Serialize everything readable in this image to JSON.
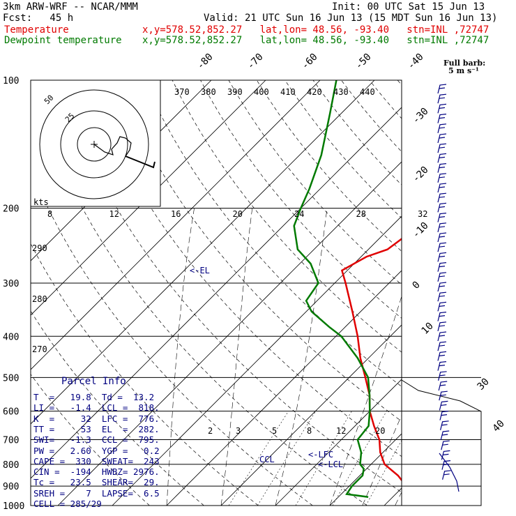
{
  "header": {
    "model": "3km ARW-WRF -- NCAR/MMM",
    "init": "Init: 00 UTC Sat 15 Jun 13",
    "fcst": "Fcst:   45 h",
    "valid": "Valid: 21 UTC Sun 16 Jun 13 (15 MDT Sun 16 Jun 13)",
    "temp_label": "Temperature",
    "dew_label": "Dewpoint temperature",
    "loc_text": "x,y=578.52,852.27   lat,lon= 48.56, -93.40   stn=INL ,72747"
  },
  "barb_legend": {
    "line1": "Full barb:",
    "line2": "5 m s⁻¹"
  },
  "colors": {
    "temperature": "#e00000",
    "dewpoint": "#007a00",
    "labels": "#000080"
  },
  "chart_data": {
    "type": "line",
    "skewt": true,
    "pressure_levels": [
      "100",
      "200",
      "300",
      "400",
      "500",
      "600",
      "700",
      "800",
      "900",
      "1000"
    ],
    "temp_ticks": [
      "-80",
      "-70",
      "-60",
      "-50",
      "-40",
      "-30",
      "-20",
      "-10",
      "0",
      "10",
      "30",
      "40"
    ],
    "theta_labels": [
      "370",
      "380",
      "390",
      "400",
      "410",
      "420",
      "430",
      "440"
    ],
    "mixing_ratio_labels": [
      "2",
      "3",
      "5",
      "8",
      "12",
      "20"
    ],
    "theta_e_labels": [
      "290",
      "280",
      "270"
    ],
    "hodo_speed_labels": [
      "8",
      "12",
      "16",
      "20",
      "24",
      "28",
      "32"
    ],
    "hodo_unit": "kts",
    "hodo_ring_labels": [
      "25",
      "50"
    ],
    "series": [
      {
        "name": "Temperature",
        "pressure": [
          1000,
          950,
          930,
          900,
          850,
          800,
          750,
          700,
          650,
          600,
          550,
          500,
          450,
          400,
          350,
          300,
          280,
          260,
          250,
          220,
          200,
          180,
          150,
          120,
          100
        ],
        "temp_c": [
          25.5,
          23.5,
          22,
          20.5,
          17,
          12.5,
          9.5,
          7,
          3.5,
          0,
          -3,
          -7,
          -11.5,
          -16,
          -21.5,
          -28,
          -31,
          -29,
          -26.5,
          -25,
          -25,
          -28,
          -34,
          -42,
          -48
        ]
      },
      {
        "name": "Dewpoint temperature",
        "pressure": [
          955,
          940,
          900,
          850,
          820,
          800,
          750,
          700,
          650,
          600,
          550,
          500,
          450,
          400,
          380,
          350,
          330,
          300,
          270,
          250,
          220,
          200,
          180,
          150,
          120,
          100
        ],
        "dew_c": [
          15.5,
          11,
          10.5,
          10.5,
          9.5,
          8,
          6,
          3,
          2.5,
          0,
          -3,
          -6.5,
          -12,
          -19,
          -23,
          -29,
          -32,
          -33,
          -38,
          -43,
          -48,
          -50,
          -52,
          -56,
          -62,
          -67
        ]
      }
    ],
    "annotations": [
      "<-EL",
      "<-LFC",
      "<-LCL",
      "CCL"
    ]
  },
  "parcel_info": {
    "title": "Parcel Info",
    "rows": [
      "T  =   19.8  Td =  13.2",
      "LI =   -1.4  LCL =  818.",
      "K  =     32  LFC =  776.",
      "TT =     53  EL  =  282.",
      "SWI=   -1.3  CCL =  795.",
      "PW =   2.60  YGP =   0.2",
      "CAPE =  330  SWEAT=  243",
      "CIN =  -194  HWBZ= 2976.",
      "Tc =   23.5  SHEAR=  29.",
      "SREH =    7  LAPSE=  6.5",
      "CELL = 285/29"
    ]
  }
}
